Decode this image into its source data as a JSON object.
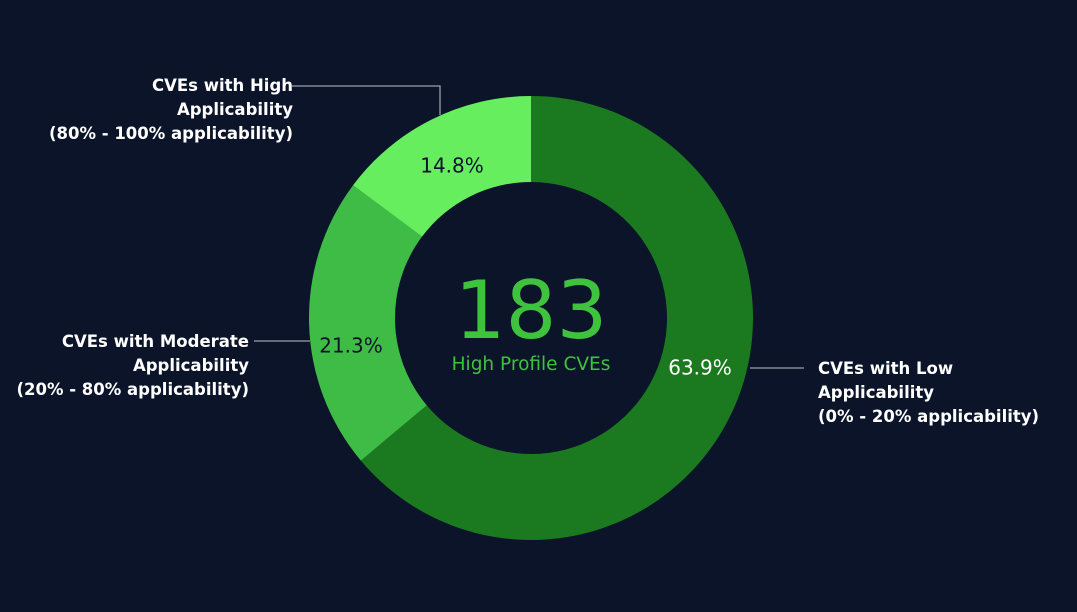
{
  "colors": {
    "background": "#0b1429",
    "accent": "#3fc33f",
    "connector": "#9aa0ab"
  },
  "center": {
    "value": "183",
    "label": "High Profile CVEs"
  },
  "chart_data": {
    "type": "pie",
    "donut": true,
    "total": 183,
    "slices": [
      {
        "id": "low",
        "value": 63.9,
        "label": "63.9%",
        "color": "#1b7a1f",
        "label_color": "#ffffff",
        "legend": [
          "CVEs with Low",
          "Applicability",
          "(0% - 20% applicability)"
        ]
      },
      {
        "id": "moderate",
        "value": 21.3,
        "label": "21.3%",
        "color": "#3fbc45",
        "label_color": "#0b1429",
        "legend": [
          "CVEs with Moderate",
          "Applicability",
          "(20% - 80% applicability)"
        ]
      },
      {
        "id": "high",
        "value": 14.8,
        "label": "14.8%",
        "color": "#66ee5f",
        "label_color": "#0b1429",
        "legend": [
          "CVEs with High",
          "Applicability",
          "(80% - 100% applicability)"
        ]
      }
    ]
  }
}
